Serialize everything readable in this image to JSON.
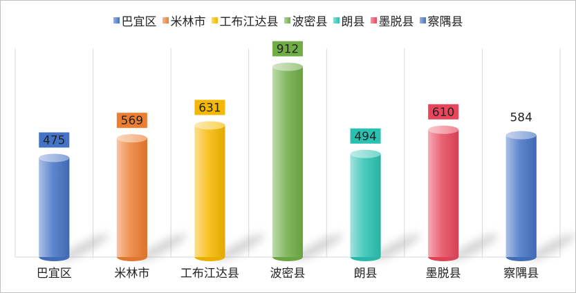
{
  "chart_data": {
    "type": "bar",
    "categories": [
      "巴宜区",
      "米林市",
      "工布江达县",
      "波密县",
      "朗县",
      "墨脱县",
      "察隅县"
    ],
    "values": [
      475,
      569,
      631,
      912,
      494,
      610,
      584
    ],
    "colors": [
      "#4472c4",
      "#ed7d31",
      "#f5b800",
      "#70ad47",
      "#2bc1b1",
      "#e8465b",
      "#4472c4"
    ],
    "label_boxes": [
      true,
      true,
      true,
      true,
      true,
      true,
      false
    ],
    "ylim": [
      0,
      1000
    ],
    "grid": true,
    "legend_position": "top",
    "title": "",
    "xlabel": "",
    "ylabel": ""
  }
}
